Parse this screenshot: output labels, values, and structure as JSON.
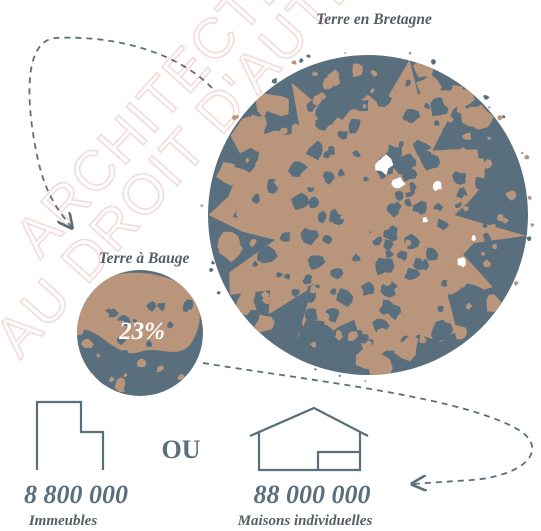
{
  "watermark": {
    "line1": "ARCHITECTE",
    "line2": "AU DROIT D'AUTEUR"
  },
  "big_circle": {
    "label": "Terre en Bretagne"
  },
  "small_circle": {
    "label": "Terre à Bauge",
    "percent_text": "23%",
    "percent_value": 23
  },
  "separator": "OU",
  "stats": [
    {
      "value": "8 800 000",
      "caption": "Immeubles"
    },
    {
      "value": "88 000 000",
      "caption": "Maisons individuelles"
    }
  ],
  "colors": {
    "earth": "#b8957b",
    "slate": "#5a6f7e",
    "text": "#555e66",
    "line": "#5a6f7e",
    "watermark": "#c0392b"
  },
  "icons": [
    "building-icon",
    "house-icon"
  ]
}
